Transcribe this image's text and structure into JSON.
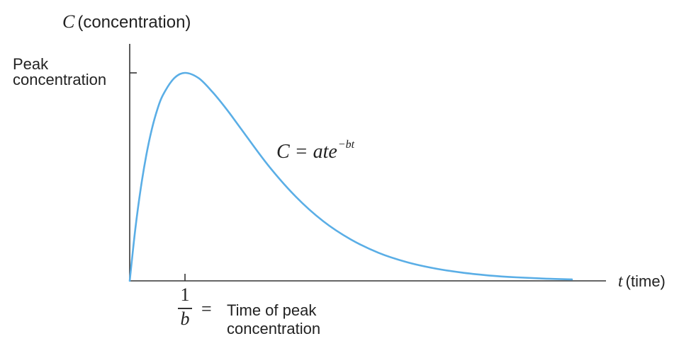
{
  "chart_data": {
    "type": "line",
    "title": "",
    "ylabel_var": "C",
    "ylabel_text": "(concentration)",
    "xlabel_var": "t",
    "xlabel_text": "(time)",
    "y_tick_label_line1": "Peak",
    "y_tick_label_line2": "concentration",
    "x_tick_label_num": "1",
    "x_tick_label_den": "b",
    "x_tick_eq": "=",
    "x_tick_desc": "Time of peak concentration",
    "formula_main": "C = ate",
    "formula_exp": "−bt",
    "line_color": "#5aaee6",
    "axis_color": "#333333",
    "params": {
      "a": 1,
      "b": 1
    },
    "x_range": [
      0,
      8
    ],
    "series": [
      {
        "x": [
          0,
          0.1,
          0.2,
          0.3,
          0.4,
          0.5,
          0.6,
          0.8,
          1.0,
          1.25,
          1.5,
          1.75,
          2.0,
          2.5,
          3.0,
          3.5,
          4.0,
          4.5,
          5.0,
          5.5,
          6.0,
          6.5,
          7.0,
          7.5,
          8.0
        ],
        "y": [
          0,
          0.246,
          0.445,
          0.604,
          0.729,
          0.824,
          0.893,
          0.973,
          1.0,
          0.974,
          0.907,
          0.826,
          0.736,
          0.557,
          0.406,
          0.287,
          0.199,
          0.135,
          0.091,
          0.061,
          0.04,
          0.026,
          0.017,
          0.011,
          0.007
        ]
      }
    ]
  }
}
